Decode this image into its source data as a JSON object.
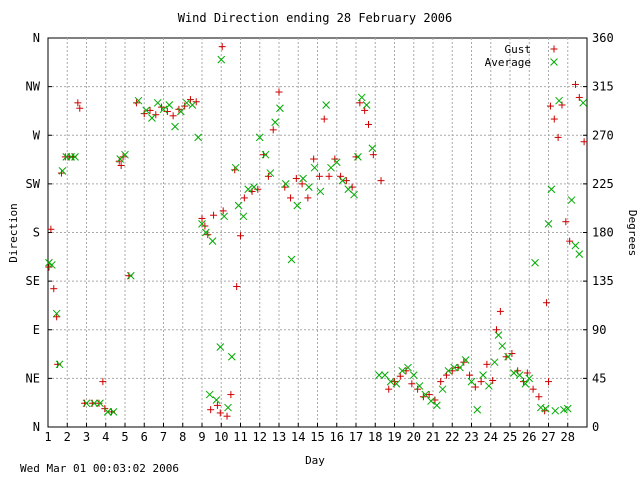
{
  "chart_data": {
    "type": "scatter",
    "title": "Wind Direction ending 28 February 2006",
    "xlabel": "Day",
    "ylabel_left": "Direction",
    "ylabel_right": "Degrees",
    "xlim": [
      1,
      29
    ],
    "ylim": [
      0,
      360
    ],
    "x_ticks": [
      1,
      2,
      3,
      4,
      5,
      6,
      7,
      8,
      9,
      10,
      11,
      12,
      13,
      14,
      15,
      16,
      17,
      18,
      19,
      20,
      21,
      22,
      23,
      24,
      25,
      26,
      27,
      28
    ],
    "left_ticks": [
      {
        "deg": 0,
        "label": "N"
      },
      {
        "deg": 45,
        "label": "NE"
      },
      {
        "deg": 90,
        "label": "E"
      },
      {
        "deg": 135,
        "label": "SE"
      },
      {
        "deg": 180,
        "label": "S"
      },
      {
        "deg": 225,
        "label": "SW"
      },
      {
        "deg": 270,
        "label": "W"
      },
      {
        "deg": 315,
        "label": "NW"
      },
      {
        "deg": 360,
        "label": "N"
      }
    ],
    "right_ticks": [
      0,
      45,
      90,
      135,
      180,
      225,
      270,
      315,
      360
    ],
    "grid": true,
    "legend_position": "top-right",
    "series": [
      {
        "name": "Gust",
        "marker": "+",
        "color": "#cc0000",
        "points": [
          [
            1.05,
            148
          ],
          [
            1.15,
            183
          ],
          [
            1.3,
            128
          ],
          [
            1.45,
            102
          ],
          [
            1.5,
            58
          ],
          [
            1.7,
            235
          ],
          [
            1.9,
            250
          ],
          [
            2.1,
            250
          ],
          [
            2.3,
            250
          ],
          [
            2.55,
            300
          ],
          [
            2.65,
            295
          ],
          [
            2.9,
            22
          ],
          [
            3.3,
            22
          ],
          [
            3.65,
            22
          ],
          [
            3.85,
            42
          ],
          [
            3.95,
            17
          ],
          [
            4.3,
            14
          ],
          [
            4.7,
            246
          ],
          [
            4.8,
            242
          ],
          [
            4.9,
            250
          ],
          [
            5.2,
            140
          ],
          [
            5.6,
            300
          ],
          [
            6.0,
            290
          ],
          [
            6.3,
            293
          ],
          [
            6.6,
            289
          ],
          [
            6.9,
            296
          ],
          [
            7.2,
            292
          ],
          [
            7.5,
            288
          ],
          [
            7.8,
            294
          ],
          [
            8.1,
            297
          ],
          [
            8.4,
            303
          ],
          [
            8.7,
            301
          ],
          [
            9.0,
            193
          ],
          [
            9.15,
            186
          ],
          [
            9.3,
            178
          ],
          [
            9.45,
            16
          ],
          [
            9.6,
            196
          ],
          [
            9.8,
            20
          ],
          [
            9.95,
            13
          ],
          [
            10.05,
            352
          ],
          [
            10.1,
            200
          ],
          [
            10.3,
            10
          ],
          [
            10.5,
            30
          ],
          [
            10.7,
            238
          ],
          [
            10.8,
            130
          ],
          [
            11.0,
            177
          ],
          [
            11.2,
            212
          ],
          [
            11.6,
            218
          ],
          [
            11.9,
            220
          ],
          [
            12.2,
            252
          ],
          [
            12.45,
            232
          ],
          [
            12.7,
            275
          ],
          [
            13.0,
            310
          ],
          [
            13.3,
            222
          ],
          [
            13.6,
            212
          ],
          [
            13.9,
            230
          ],
          [
            14.2,
            225
          ],
          [
            14.5,
            212
          ],
          [
            14.8,
            248
          ],
          [
            15.1,
            232
          ],
          [
            15.35,
            285
          ],
          [
            15.6,
            232
          ],
          [
            15.9,
            248
          ],
          [
            16.2,
            232
          ],
          [
            16.5,
            228
          ],
          [
            16.8,
            222
          ],
          [
            17.0,
            250
          ],
          [
            17.2,
            300
          ],
          [
            17.45,
            293
          ],
          [
            17.65,
            280
          ],
          [
            17.9,
            252
          ],
          [
            18.3,
            228
          ],
          [
            18.7,
            35
          ],
          [
            19.0,
            42
          ],
          [
            19.3,
            47
          ],
          [
            19.6,
            52
          ],
          [
            19.9,
            40
          ],
          [
            20.2,
            35
          ],
          [
            20.5,
            28
          ],
          [
            20.8,
            30
          ],
          [
            21.1,
            25
          ],
          [
            21.4,
            42
          ],
          [
            21.7,
            48
          ],
          [
            22.0,
            52
          ],
          [
            22.3,
            55
          ],
          [
            22.6,
            60
          ],
          [
            22.9,
            48
          ],
          [
            23.2,
            37
          ],
          [
            23.5,
            42
          ],
          [
            23.8,
            58
          ],
          [
            24.1,
            43
          ],
          [
            24.3,
            90
          ],
          [
            24.5,
            107
          ],
          [
            24.8,
            65
          ],
          [
            25.1,
            68
          ],
          [
            25.4,
            52
          ],
          [
            25.7,
            42
          ],
          [
            25.9,
            50
          ],
          [
            26.2,
            35
          ],
          [
            26.5,
            28
          ],
          [
            26.8,
            15
          ],
          [
            26.9,
            115
          ],
          [
            27.0,
            42
          ],
          [
            27.1,
            297
          ],
          [
            27.3,
            285
          ],
          [
            27.5,
            268
          ],
          [
            27.7,
            298
          ],
          [
            27.9,
            190
          ],
          [
            28.1,
            172
          ],
          [
            28.4,
            317
          ],
          [
            28.6,
            305
          ],
          [
            28.85,
            264
          ]
        ]
      },
      {
        "name": "Average",
        "marker": "x",
        "color": "#00aa00",
        "points": [
          [
            1.05,
            152
          ],
          [
            1.2,
            150
          ],
          [
            1.45,
            105
          ],
          [
            1.6,
            58
          ],
          [
            1.75,
            237
          ],
          [
            1.95,
            250
          ],
          [
            2.2,
            250
          ],
          [
            2.4,
            250
          ],
          [
            3.0,
            22
          ],
          [
            3.4,
            22
          ],
          [
            3.7,
            22
          ],
          [
            4.1,
            14
          ],
          [
            4.4,
            14
          ],
          [
            4.75,
            248
          ],
          [
            5.0,
            252
          ],
          [
            5.3,
            140
          ],
          [
            5.7,
            302
          ],
          [
            6.1,
            293
          ],
          [
            6.4,
            286
          ],
          [
            6.7,
            300
          ],
          [
            7.0,
            294
          ],
          [
            7.3,
            298
          ],
          [
            7.6,
            278
          ],
          [
            7.9,
            292
          ],
          [
            8.2,
            300
          ],
          [
            8.5,
            298
          ],
          [
            8.8,
            268
          ],
          [
            9.0,
            188
          ],
          [
            9.2,
            180
          ],
          [
            9.4,
            30
          ],
          [
            9.55,
            172
          ],
          [
            9.75,
            25
          ],
          [
            9.95,
            74
          ],
          [
            10.0,
            340
          ],
          [
            10.15,
            195
          ],
          [
            10.35,
            18
          ],
          [
            10.55,
            65
          ],
          [
            10.75,
            240
          ],
          [
            10.9,
            205
          ],
          [
            11.15,
            195
          ],
          [
            11.4,
            220
          ],
          [
            11.7,
            222
          ],
          [
            12.0,
            268
          ],
          [
            12.3,
            252
          ],
          [
            12.55,
            235
          ],
          [
            12.8,
            282
          ],
          [
            13.05,
            295
          ],
          [
            13.35,
            225
          ],
          [
            13.65,
            155
          ],
          [
            13.95,
            205
          ],
          [
            14.25,
            230
          ],
          [
            14.55,
            222
          ],
          [
            14.85,
            240
          ],
          [
            15.15,
            218
          ],
          [
            15.45,
            298
          ],
          [
            15.7,
            240
          ],
          [
            16.0,
            245
          ],
          [
            16.3,
            228
          ],
          [
            16.6,
            220
          ],
          [
            16.9,
            215
          ],
          [
            17.1,
            250
          ],
          [
            17.3,
            305
          ],
          [
            17.55,
            298
          ],
          [
            17.85,
            258
          ],
          [
            18.2,
            48
          ],
          [
            18.5,
            48
          ],
          [
            18.8,
            42
          ],
          [
            19.1,
            40
          ],
          [
            19.4,
            52
          ],
          [
            19.7,
            55
          ],
          [
            20.0,
            48
          ],
          [
            20.3,
            38
          ],
          [
            20.6,
            30
          ],
          [
            20.9,
            24
          ],
          [
            21.2,
            20
          ],
          [
            21.5,
            35
          ],
          [
            21.8,
            52
          ],
          [
            22.1,
            55
          ],
          [
            22.4,
            55
          ],
          [
            22.7,
            62
          ],
          [
            23.0,
            42
          ],
          [
            23.3,
            16
          ],
          [
            23.6,
            48
          ],
          [
            23.9,
            38
          ],
          [
            24.2,
            60
          ],
          [
            24.4,
            85
          ],
          [
            24.6,
            75
          ],
          [
            24.9,
            65
          ],
          [
            25.2,
            50
          ],
          [
            25.5,
            48
          ],
          [
            25.8,
            40
          ],
          [
            26.0,
            45
          ],
          [
            26.3,
            152
          ],
          [
            26.6,
            18
          ],
          [
            26.85,
            17
          ],
          [
            27.0,
            188
          ],
          [
            27.15,
            220
          ],
          [
            27.35,
            15
          ],
          [
            27.55,
            302
          ],
          [
            27.8,
            16
          ],
          [
            28.0,
            17
          ],
          [
            28.2,
            210
          ],
          [
            28.4,
            168
          ],
          [
            28.6,
            160
          ],
          [
            28.8,
            300
          ]
        ]
      }
    ]
  },
  "footer": {
    "timestamp": "Wed Mar 01 00:03:02 2006"
  }
}
